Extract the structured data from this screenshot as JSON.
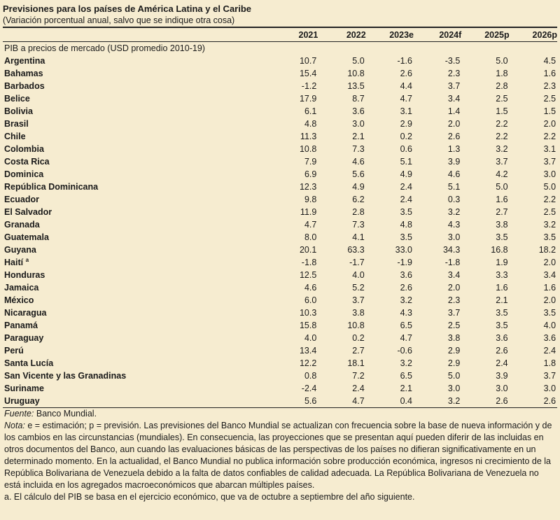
{
  "title": "Previsiones para los países de América Latina y el Caribe",
  "subtitle": "(Variación porcentual anual, salvo que se indique otra cosa)",
  "columns": [
    "2021",
    "2022",
    "2023e",
    "2024f",
    "2025p",
    "2026p"
  ],
  "section_label": "PIB a precios de mercado (USD promedio 2010-19)",
  "rows": [
    {
      "country": "Argentina",
      "values": [
        "10.7",
        "5.0",
        "-1.6",
        "-3.5",
        "5.0",
        "4.5"
      ]
    },
    {
      "country": "Bahamas",
      "values": [
        "15.4",
        "10.8",
        "2.6",
        "2.3",
        "1.8",
        "1.6"
      ]
    },
    {
      "country": "Barbados",
      "values": [
        "-1.2",
        "13.5",
        "4.4",
        "3.7",
        "2.8",
        "2.3"
      ]
    },
    {
      "country": "Belice",
      "values": [
        "17.9",
        "8.7",
        "4.7",
        "3.4",
        "2.5",
        "2.5"
      ]
    },
    {
      "country": "Bolivia",
      "values": [
        "6.1",
        "3.6",
        "3.1",
        "1.4",
        "1.5",
        "1.5"
      ]
    },
    {
      "country": "Brasil",
      "values": [
        "4.8",
        "3.0",
        "2.9",
        "2.0",
        "2.2",
        "2.0"
      ]
    },
    {
      "country": "Chile",
      "values": [
        "11.3",
        "2.1",
        "0.2",
        "2.6",
        "2.2",
        "2.2"
      ]
    },
    {
      "country": "Colombia",
      "values": [
        "10.8",
        "7.3",
        "0.6",
        "1.3",
        "3.2",
        "3.1"
      ]
    },
    {
      "country": "Costa Rica",
      "values": [
        "7.9",
        "4.6",
        "5.1",
        "3.9",
        "3.7",
        "3.7"
      ]
    },
    {
      "country": "Dominica",
      "values": [
        "6.9",
        "5.6",
        "4.9",
        "4.6",
        "4.2",
        "3.0"
      ]
    },
    {
      "country": "República Dominicana",
      "values": [
        "12.3",
        "4.9",
        "2.4",
        "5.1",
        "5.0",
        "5.0"
      ]
    },
    {
      "country": "Ecuador",
      "values": [
        "9.8",
        "6.2",
        "2.4",
        "0.3",
        "1.6",
        "2.2"
      ]
    },
    {
      "country": "El Salvador",
      "values": [
        "11.9",
        "2.8",
        "3.5",
        "3.2",
        "2.7",
        "2.5"
      ]
    },
    {
      "country": "Granada",
      "values": [
        "4.7",
        "7.3",
        "4.8",
        "4.3",
        "3.8",
        "3.2"
      ]
    },
    {
      "country": "Guatemala",
      "values": [
        "8.0",
        "4.1",
        "3.5",
        "3.0",
        "3.5",
        "3.5"
      ]
    },
    {
      "country": "Guyana",
      "values": [
        "20.1",
        "63.3",
        "33.0",
        "34.3",
        "16.8",
        "18.2"
      ]
    },
    {
      "country": "Haití",
      "sup": "a",
      "values": [
        "-1.8",
        "-1.7",
        "-1.9",
        "-1.8",
        "1.9",
        "2.0"
      ]
    },
    {
      "country": "Honduras",
      "values": [
        "12.5",
        "4.0",
        "3.6",
        "3.4",
        "3.3",
        "3.4"
      ]
    },
    {
      "country": "Jamaica",
      "values": [
        "4.6",
        "5.2",
        "2.6",
        "2.0",
        "1.6",
        "1.6"
      ]
    },
    {
      "country": "México",
      "values": [
        "6.0",
        "3.7",
        "3.2",
        "2.3",
        "2.1",
        "2.0"
      ]
    },
    {
      "country": "Nicaragua",
      "values": [
        "10.3",
        "3.8",
        "4.3",
        "3.7",
        "3.5",
        "3.5"
      ]
    },
    {
      "country": "Panamá",
      "values": [
        "15.8",
        "10.8",
        "6.5",
        "2.5",
        "3.5",
        "4.0"
      ]
    },
    {
      "country": "Paraguay",
      "values": [
        "4.0",
        "0.2",
        "4.7",
        "3.8",
        "3.6",
        "3.6"
      ]
    },
    {
      "country": "Perú",
      "values": [
        "13.4",
        "2.7",
        "-0.6",
        "2.9",
        "2.6",
        "2.4"
      ]
    },
    {
      "country": "Santa Lucía",
      "values": [
        "12.2",
        "18.1",
        "3.2",
        "2.9",
        "2.4",
        "1.8"
      ]
    },
    {
      "country": "San Vicente y las Granadinas",
      "values": [
        "0.8",
        "7.2",
        "6.5",
        "5.0",
        "3.9",
        "3.7"
      ]
    },
    {
      "country": "Suriname",
      "values": [
        "-2.4",
        "2.4",
        "2.1",
        "3.0",
        "3.0",
        "3.0"
      ]
    },
    {
      "country": "Uruguay",
      "values": [
        "5.6",
        "4.7",
        "0.4",
        "3.2",
        "2.6",
        "2.6"
      ]
    }
  ],
  "footer": {
    "source_label": "Fuente:",
    "source_text": "Banco Mundial.",
    "note_label": "Nota:",
    "note_text": "e = estimación; p = previsión. Las previsiones del Banco Mundial se actualizan con frecuencia sobre la base de nueva información y de los cambios en las circunstancias (mundiales). En consecuencia, las proyecciones que se presentan aquí pueden diferir de las incluidas en otros documentos del Banco, aun cuando las evaluaciones básicas de las perspectivas de los países no difieran significativamente en un determinado momento. En la actualidad, el Banco Mundial no publica información sobre producción económica, ingresos ni crecimiento de la República Bolivariana de Venezuela debido a la falta de datos confiables de calidad adecuada. La República Bolivariana de Venezuela no está incluida en los agregados macroeconómicos que abarcan múltiples países.",
    "footnote_a": "a. El cálculo del PIB se basa en el ejercicio económico, que va de octubre a septiembre del año siguiente."
  }
}
